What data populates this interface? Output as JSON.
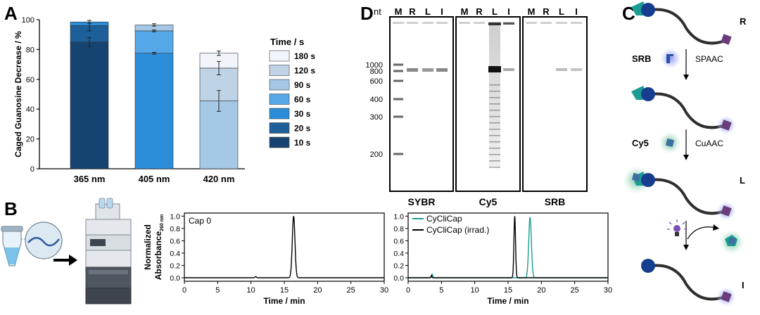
{
  "panels": {
    "a": "A",
    "b": "B",
    "c": "C",
    "d": "D"
  },
  "chart_data": [
    {
      "type": "bar",
      "stacked": true,
      "ylabel": "Caged Guanosine Decrease / %",
      "ylim": [
        0,
        100
      ],
      "yticks": [
        "0",
        "20",
        "40",
        "60",
        "80",
        "100"
      ],
      "categories": [
        "365 nm",
        "405 nm",
        "420 nm"
      ],
      "legend_title": "Time / s",
      "legend_items": [
        "180 s",
        "120 s",
        "90 s",
        "60 s",
        "30 s",
        "20 s",
        "10 s"
      ],
      "legend_colors": [
        "#f1f5fb",
        "#bfd3e6",
        "#a4c8e6",
        "#55a8e7",
        "#2b8cd8",
        "#1c5f99",
        "#154470"
      ],
      "bars": [
        {
          "segments": [
            {
              "t": "10 s",
              "v": 85,
              "color": "#154470"
            },
            {
              "t": "20 s",
              "v": 96,
              "color": "#1c5f99"
            },
            {
              "t": "30 s",
              "v": 98.5,
              "color": "#2b8cd8"
            }
          ],
          "err": [
            [
              85,
              3
            ],
            [
              96,
              3.5
            ],
            [
              98.5,
              1
            ]
          ]
        },
        {
          "segments": [
            {
              "t": "30 s",
              "v": 77.5,
              "color": "#2b8cd8"
            },
            {
              "t": "60 s",
              "v": 92.5,
              "color": "#55a8e7"
            },
            {
              "t": "90 s",
              "v": 96.5,
              "color": "#a4c8e6"
            }
          ],
          "err": [
            [
              77.5,
              0.6
            ],
            [
              92.5,
              0.6
            ],
            [
              96.5,
              0.8
            ]
          ]
        },
        {
          "segments": [
            {
              "t": "90 s",
              "v": 45.5,
              "color": "#a4c8e6"
            },
            {
              "t": "120 s",
              "v": 67.5,
              "color": "#bfd3e6"
            },
            {
              "t": "180 s",
              "v": 77.5,
              "color": "#f1f5fb"
            }
          ],
          "err": [
            [
              45.5,
              7
            ],
            [
              67.5,
              4.5
            ],
            [
              77.5,
              1.5
            ]
          ]
        }
      ]
    },
    {
      "type": "line",
      "ylabel_main": "Normalized",
      "ylabel_sub": "Absorbance",
      "ylabel_subscript": "260 nm",
      "annotation": "Cap 0",
      "xlabel": "Time / min",
      "xlim": [
        0,
        30
      ],
      "ylim": [
        0,
        1.05
      ],
      "xticks": [
        "0",
        "5",
        "10",
        "15",
        "20",
        "25",
        "30"
      ],
      "yticks": [
        "0.0",
        "0.2",
        "0.4",
        "0.6",
        "0.8",
        "1.0"
      ],
      "series": [
        {
          "color": "#000000",
          "peaks": [
            {
              "x": 16.4,
              "h": 1.0,
              "w": 0.2
            },
            {
              "x": 10.7,
              "h": 0.02,
              "w": 0.1
            }
          ]
        }
      ]
    },
    {
      "type": "line",
      "xlabel": "Time / min",
      "xlim": [
        0,
        30
      ],
      "ylim": [
        0,
        1.05
      ],
      "xticks": [
        "0",
        "5",
        "10",
        "15",
        "20",
        "25",
        "30"
      ],
      "yticks": [
        "0.0",
        "0.2",
        "0.4",
        "0.6",
        "0.8",
        "1.0"
      ],
      "series": [
        {
          "name": "CyCliCap",
          "color": "#1a9c92",
          "peaks": [
            {
              "x": 18.3,
              "h": 0.98,
              "w": 0.2
            },
            {
              "x": 3.6,
              "h": 0.06,
              "w": 0.08
            }
          ]
        },
        {
          "name": "CyCliCap (irrad.)",
          "color": "#000000",
          "peaks": [
            {
              "x": 16.0,
              "h": 1.0,
              "w": 0.12
            },
            {
              "x": 3.5,
              "h": 0.04,
              "w": 0.06
            }
          ]
        }
      ]
    }
  ],
  "gel": {
    "nt_label": "nt",
    "lane_labels": [
      "M",
      "R",
      "L",
      "I"
    ],
    "marker_labels": [
      "1000",
      "800",
      "600",
      "400",
      "300",
      "200"
    ],
    "panel_labels": [
      "SYBR",
      "Cy5",
      "SRB"
    ]
  },
  "scheme": {
    "states": [
      "R",
      "L",
      "I"
    ],
    "reagents": [
      "SRB",
      "Cy5"
    ],
    "reactions": [
      "SPAAC",
      "CuAAC"
    ]
  }
}
